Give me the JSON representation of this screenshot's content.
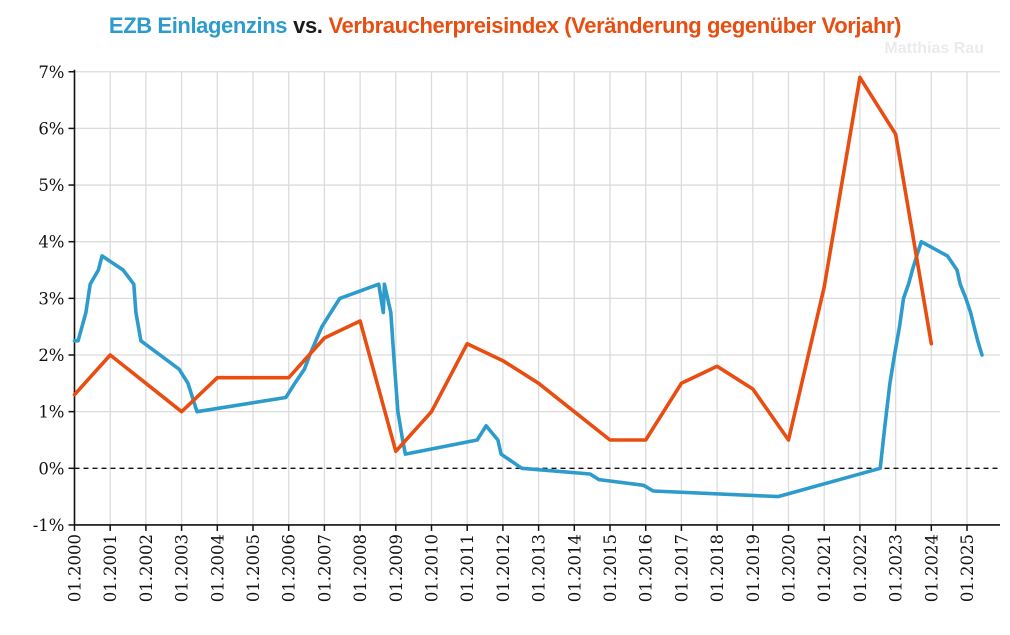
{
  "title": {
    "part1": "EZB Einlagenzins",
    "part2": "vs.",
    "part3": "Verbraucherpreisindex (Veränderung gegenüber Vorjahr)"
  },
  "watermark": "Matthias Rau",
  "colors": {
    "series1_blue": "#2d9ccd",
    "series2_orange": "#e84e12",
    "gridline": "#dcdcdc",
    "axis": "#111111",
    "background": "#ffffff",
    "watermark": "#ebebeb"
  },
  "chart_data": {
    "type": "line",
    "title": "EZB Einlagenzins vs. Verbraucherpreisindex (Veränderung gegenüber Vorjahr)",
    "grid": true,
    "legend_position": "in-title",
    "zero_line": "dashed",
    "x_axis": {
      "range": [
        2000,
        2026.0
      ],
      "tick_years": [
        2000,
        2001,
        2002,
        2003,
        2004,
        2005,
        2006,
        2007,
        2008,
        2009,
        2010,
        2011,
        2012,
        2013,
        2014,
        2015,
        2016,
        2017,
        2018,
        2019,
        2020,
        2021,
        2022,
        2023,
        2024,
        2025
      ],
      "tick_labels": [
        "01.2000",
        "01.2001",
        "01.2002",
        "01.2003",
        "01.2004",
        "01.2005",
        "01.2006",
        "01.2007",
        "01.2008",
        "01.2009",
        "01.2010",
        "01.2011",
        "01.2012",
        "01.2013",
        "01.2014",
        "01.2015",
        "01.2016",
        "01.2017",
        "01.2018",
        "01.2019",
        "01.2020",
        "01.2021",
        "01.2022",
        "01.2023",
        "01.2024",
        "01.2025"
      ]
    },
    "y_axis": {
      "range": [
        -1,
        7
      ],
      "unit": "%",
      "tick_values": [
        7,
        6,
        5,
        4,
        3,
        2,
        1,
        0,
        -1
      ],
      "tick_labels": [
        "7%",
        "6%",
        "5%",
        "4%",
        "3%",
        "2%",
        "1%",
        "0%",
        "-1%"
      ]
    },
    "series": [
      {
        "name": "EZB Einlagenzins",
        "color": "#2d9ccd",
        "points": [
          [
            2000.0,
            2.25
          ],
          [
            2000.1,
            2.25
          ],
          [
            2000.21,
            2.5
          ],
          [
            2000.32,
            2.75
          ],
          [
            2000.44,
            3.25
          ],
          [
            2000.67,
            3.5
          ],
          [
            2000.77,
            3.75
          ],
          [
            2001.36,
            3.5
          ],
          [
            2001.66,
            3.25
          ],
          [
            2001.72,
            2.75
          ],
          [
            2001.86,
            2.25
          ],
          [
            2002.93,
            1.75
          ],
          [
            2003.18,
            1.5
          ],
          [
            2003.43,
            1.0
          ],
          [
            2005.92,
            1.25
          ],
          [
            2006.17,
            1.5
          ],
          [
            2006.44,
            1.75
          ],
          [
            2006.59,
            2.0
          ],
          [
            2006.76,
            2.25
          ],
          [
            2006.93,
            2.5
          ],
          [
            2007.18,
            2.75
          ],
          [
            2007.43,
            3.0
          ],
          [
            2008.52,
            3.25
          ],
          [
            2008.65,
            2.75
          ],
          [
            2008.68,
            3.25
          ],
          [
            2008.86,
            2.75
          ],
          [
            2008.94,
            2.0
          ],
          [
            2009.06,
            1.0
          ],
          [
            2009.19,
            0.5
          ],
          [
            2009.27,
            0.25
          ],
          [
            2011.28,
            0.5
          ],
          [
            2011.53,
            0.75
          ],
          [
            2011.86,
            0.5
          ],
          [
            2011.95,
            0.25
          ],
          [
            2012.53,
            0.0
          ],
          [
            2014.44,
            -0.1
          ],
          [
            2014.69,
            -0.2
          ],
          [
            2015.94,
            -0.3
          ],
          [
            2016.21,
            -0.4
          ],
          [
            2019.71,
            -0.5
          ],
          [
            2022.57,
            0.0
          ],
          [
            2022.7,
            0.75
          ],
          [
            2022.84,
            1.5
          ],
          [
            2022.97,
            2.0
          ],
          [
            2023.11,
            2.5
          ],
          [
            2023.22,
            3.0
          ],
          [
            2023.36,
            3.25
          ],
          [
            2023.47,
            3.5
          ],
          [
            2023.59,
            3.75
          ],
          [
            2023.72,
            4.0
          ],
          [
            2024.45,
            3.75
          ],
          [
            2024.72,
            3.5
          ],
          [
            2024.81,
            3.25
          ],
          [
            2024.97,
            3.0
          ],
          [
            2025.1,
            2.75
          ],
          [
            2025.2,
            2.5
          ],
          [
            2025.3,
            2.25
          ],
          [
            2025.42,
            2.0
          ]
        ]
      },
      {
        "name": "Verbraucherpreisindex (Veränderung gegenüber Vorjahr)",
        "color": "#e84e12",
        "points": [
          [
            2000,
            1.3
          ],
          [
            2001,
            2.0
          ],
          [
            2002,
            1.5
          ],
          [
            2003,
            1.0
          ],
          [
            2004,
            1.6
          ],
          [
            2005,
            1.6
          ],
          [
            2006,
            1.6
          ],
          [
            2007,
            2.3
          ],
          [
            2008,
            2.6
          ],
          [
            2009,
            0.3
          ],
          [
            2010,
            1.0
          ],
          [
            2011,
            2.2
          ],
          [
            2012,
            1.9
          ],
          [
            2013,
            1.5
          ],
          [
            2014,
            1.0
          ],
          [
            2015,
            0.5
          ],
          [
            2016,
            0.5
          ],
          [
            2017,
            1.5
          ],
          [
            2018,
            1.8
          ],
          [
            2019,
            1.4
          ],
          [
            2020,
            0.5
          ],
          [
            2021,
            3.2
          ],
          [
            2022,
            6.9
          ],
          [
            2023,
            5.9
          ],
          [
            2024,
            2.2
          ]
        ]
      }
    ]
  }
}
